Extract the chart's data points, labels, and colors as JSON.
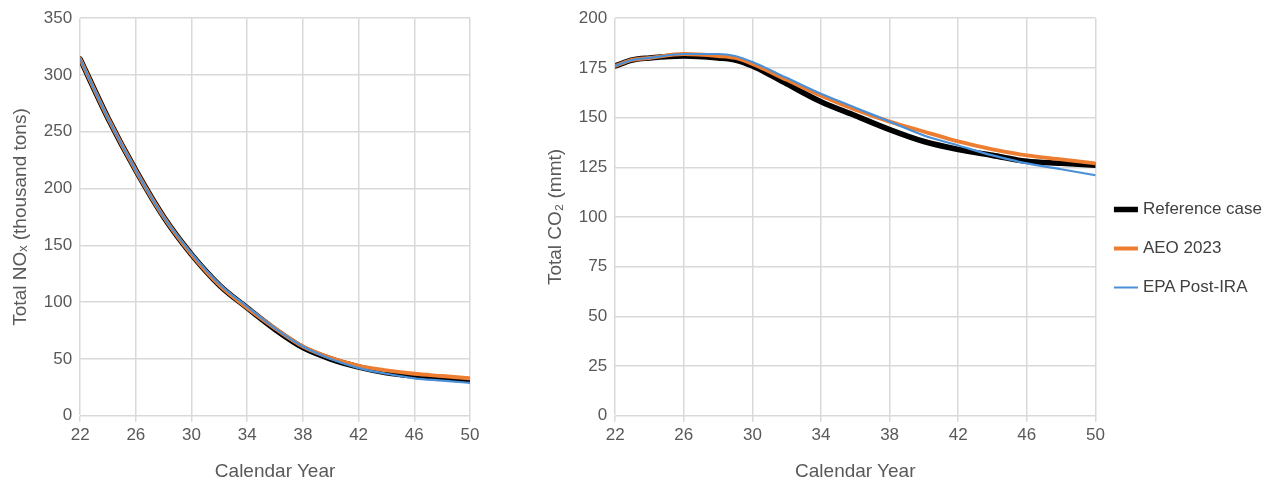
{
  "chart_data": [
    {
      "type": "line",
      "xlabel": "Calendar Year",
      "ylabel": "Total NOₓ (thousand tons)",
      "x": [
        22,
        24,
        26,
        28,
        30,
        32,
        34,
        36,
        38,
        40,
        42,
        44,
        46,
        48,
        50
      ],
      "xlim": [
        22,
        50
      ],
      "xticks": [
        22,
        26,
        30,
        34,
        38,
        42,
        46,
        50
      ],
      "ylim": [
        0,
        350
      ],
      "yticks": [
        0,
        50,
        100,
        150,
        200,
        250,
        300,
        350
      ],
      "grid": true,
      "legend": false,
      "marker": "none",
      "line_style": "solid",
      "series": [
        {
          "color": "#000000",
          "values": [
            314,
            262,
            216,
            175,
            142,
            115,
            95,
            76,
            60,
            50,
            43,
            38,
            35,
            33,
            31
          ]
        },
        {
          "color": "#ed7d31",
          "values": [
            314,
            262,
            216,
            175,
            142,
            115,
            95,
            77,
            61,
            51,
            44,
            40,
            37,
            35,
            33
          ]
        },
        {
          "color": "#4a90d9",
          "values": [
            314,
            262,
            216,
            175,
            143,
            116,
            96,
            77,
            61,
            50,
            42,
            37,
            33,
            31,
            29
          ]
        }
      ]
    },
    {
      "type": "line",
      "xlabel": "Calendar Year",
      "ylabel": "Total CO₂ (mmt)",
      "x": [
        22,
        23,
        24,
        26,
        28,
        29,
        30,
        32,
        34,
        36,
        38,
        40,
        42,
        44,
        46,
        48,
        50
      ],
      "xlim": [
        22,
        50
      ],
      "xticks": [
        22,
        26,
        30,
        34,
        38,
        42,
        46,
        50
      ],
      "ylim": [
        0,
        200
      ],
      "yticks": [
        0,
        25,
        50,
        75,
        100,
        125,
        150,
        175,
        200
      ],
      "grid": true,
      "legend": "right",
      "marker": "none",
      "line_style": "solid",
      "series": [
        {
          "name": "Reference case",
          "color": "#000000",
          "values": [
            176,
            179,
            180,
            181,
            180,
            179,
            176,
            167,
            158,
            151,
            144,
            138,
            134,
            131,
            128,
            127,
            126
          ]
        },
        {
          "name": "AEO 2023",
          "color": "#ed7d31",
          "values": [
            176,
            179,
            180,
            182,
            181,
            180,
            177,
            169,
            161,
            154,
            148,
            143,
            138,
            134,
            131,
            129,
            127
          ]
        },
        {
          "name": "EPA Post-IRA",
          "color": "#4a90d9",
          "values": [
            176,
            179,
            180,
            182,
            182,
            181,
            178,
            170,
            162,
            155,
            148,
            141,
            136,
            131,
            127,
            124,
            121
          ]
        }
      ]
    }
  ]
}
